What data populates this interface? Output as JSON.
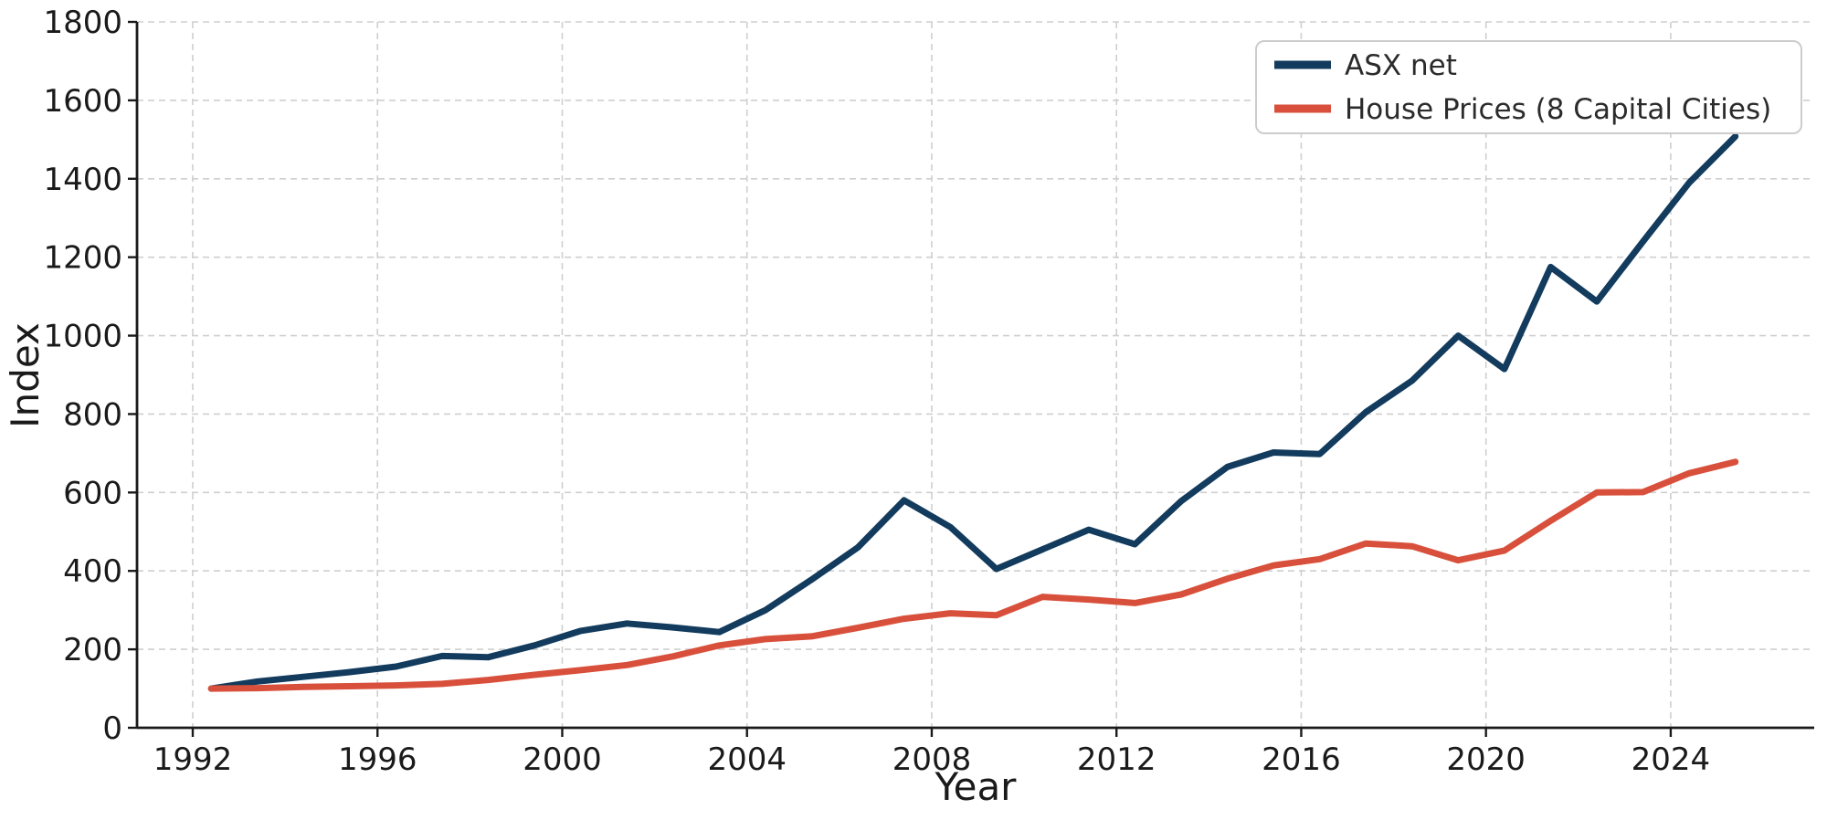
{
  "chart_data": {
    "type": "line",
    "title": "",
    "xlabel": "Year",
    "ylabel": "Index",
    "grid": true,
    "legend_position": "upper right",
    "xlim": [
      1990.9,
      2027.1
    ],
    "ylim": [
      0,
      1800
    ],
    "xticks": [
      1992,
      1996,
      2000,
      2004,
      2008,
      2012,
      2016,
      2020,
      2024
    ],
    "yticks": [
      0,
      200,
      400,
      600,
      800,
      1000,
      1200,
      1400,
      1600,
      1800
    ],
    "x_point_offset": 0.4,
    "years": [
      1992,
      1993,
      1994,
      1995,
      1996,
      1997,
      1998,
      1999,
      2000,
      2001,
      2002,
      2003,
      2004,
      2005,
      2006,
      2007,
      2008,
      2009,
      2010,
      2011,
      2012,
      2013,
      2014,
      2015,
      2016,
      2017,
      2018,
      2019,
      2020,
      2021,
      2022,
      2023,
      2024,
      2025
    ],
    "series": [
      {
        "name": "ASX net",
        "color": "#123B5D",
        "values": [
          100,
          118,
          130,
          142,
          156,
          183,
          180,
          210,
          247,
          266,
          256,
          244,
          300,
          378,
          460,
          580,
          512,
          405,
          455,
          505,
          468,
          578,
          665,
          702,
          698,
          805,
          885,
          1000,
          915,
          1175,
          1087,
          1240,
          1390,
          1508
        ]
      },
      {
        "name": "House Prices (8 Capital Cities)",
        "color": "#D8503B",
        "values": [
          100,
          101,
          104,
          106,
          108,
          112,
          122,
          135,
          147,
          160,
          182,
          210,
          226,
          233,
          255,
          278,
          292,
          287,
          334,
          327,
          318,
          340,
          380,
          414,
          430,
          470,
          463,
          427,
          452,
          528,
          600,
          601,
          649,
          678
        ]
      }
    ],
    "colors": {
      "grid": "#cfcfcf",
      "axis": "#1a1a1a",
      "background": "#ffffff"
    }
  }
}
